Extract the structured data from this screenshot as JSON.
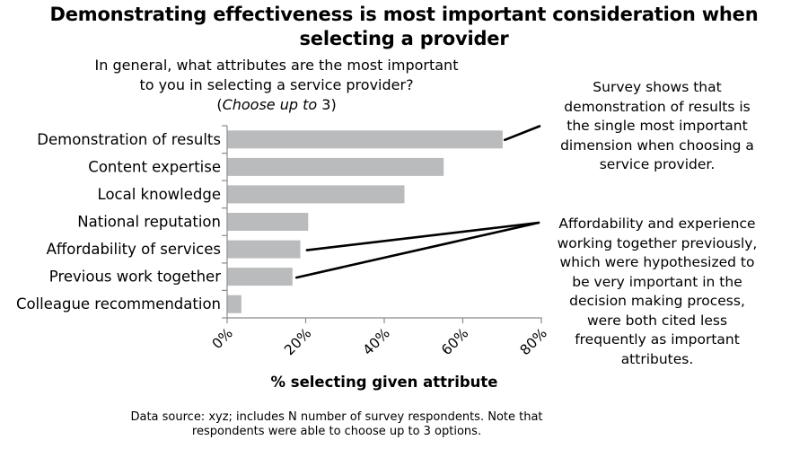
{
  "title": {
    "lines": [
      "Demonstrating effectiveness is most important consideration when",
      "selecting a provider"
    ]
  },
  "subtitle": {
    "line1": "In general, what attributes are the most important",
    "line2": "to you in selecting a service provider?",
    "line3_open": "(",
    "line3_italic": "Choose up to",
    "line3_close": " 3)"
  },
  "chart_data": {
    "type": "bar",
    "orientation": "horizontal",
    "title": "Demonstrating effectiveness is most important consideration when selecting a provider",
    "categories": [
      "Demonstration of results",
      "Content expertise",
      "Local knowledge",
      "National reputation",
      "Affordability of services",
      "Previous work together",
      "Colleague recommendation"
    ],
    "values": [
      70,
      55,
      45,
      20.5,
      18.5,
      16.5,
      3.5
    ],
    "xlabel": "% selecting given attribute",
    "ylabel": "",
    "xlim": [
      0,
      80
    ],
    "x_tick_values": [
      0,
      20,
      40,
      60,
      80
    ],
    "x_tick_labels": [
      "0%",
      "20%",
      "40%",
      "60%",
      "80%"
    ],
    "x_tick_rotation_deg": 45,
    "grid": false,
    "legend": "none",
    "bar_color": "#b9bbbd",
    "spine_color": "#8a8a8a",
    "leader_line_color": "#000000"
  },
  "annotations": {
    "top": {
      "lines": [
        "Survey shows that",
        "demonstration of results is",
        "the single most important",
        "dimension when choosing a",
        "service provider."
      ]
    },
    "bottom": {
      "lines": [
        "Affordability and experience",
        "working together previously,",
        "which were hypothesized to",
        "be very important in the",
        "decision making process,",
        "were both cited less",
        "frequently as important",
        "attributes."
      ]
    }
  },
  "footer": {
    "lines": [
      "Data source: xyz; includes N number of survey respondents. Note that",
      "respondents were able to choose up to 3 options."
    ]
  }
}
